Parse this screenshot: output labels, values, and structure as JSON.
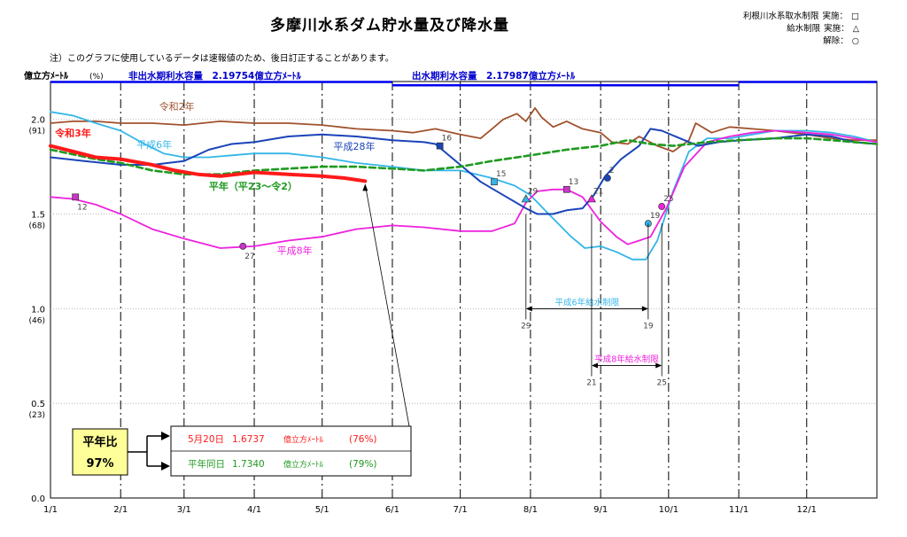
{
  "header": {
    "title": "多摩川水系ダム貯水量及び降水量",
    "note": "注）このグラフに使用しているデータは速報値のため、後日訂正することがあります。",
    "legend": [
      {
        "label": "利根川水系取水制限",
        "action": "実施：",
        "symbol": "□"
      },
      {
        "label": "給水制限",
        "action": "実施：",
        "symbol": "△"
      },
      {
        "label": "",
        "action": "解除：",
        "symbol": "○"
      }
    ]
  },
  "chart_data": {
    "type": "line",
    "ylabel": "億立方ﾒｰﾄﾙ",
    "ylabel_unit": "(%)",
    "ylim": [
      0.0,
      2.2
    ],
    "yticks": [
      {
        "value": 0.0,
        "label": "0.0",
        "pct": ""
      },
      {
        "value": 0.5,
        "label": "0.5",
        "pct": "(23)"
      },
      {
        "value": 1.0,
        "label": "1.0",
        "pct": "(46)"
      },
      {
        "value": 1.5,
        "label": "1.5",
        "pct": "(68)"
      },
      {
        "value": 2.0,
        "label": "2.0",
        "pct": "(91)"
      }
    ],
    "xlim": [
      0,
      365
    ],
    "xticks": [
      {
        "day": 0,
        "label": "1/1"
      },
      {
        "day": 31,
        "label": "2/1"
      },
      {
        "day": 59,
        "label": "3/1"
      },
      {
        "day": 90,
        "label": "4/1"
      },
      {
        "day": 120,
        "label": "5/1"
      },
      {
        "day": 151,
        "label": "6/1"
      },
      {
        "day": 181,
        "label": "7/1"
      },
      {
        "day": 212,
        "label": "8/1"
      },
      {
        "day": 243,
        "label": "9/1"
      },
      {
        "day": 273,
        "label": "10/1"
      },
      {
        "day": 304,
        "label": "11/1"
      },
      {
        "day": 334,
        "label": "12/1"
      }
    ],
    "capacity_bands": [
      {
        "label": "非出水期利水容量　2.19754億立方ﾒｰﾄﾙ",
        "value": 2.19754,
        "from_day": 0,
        "to_day": 151
      },
      {
        "label": "出水期利水容量　2.17987億立方ﾒｰﾄﾙ",
        "value": 2.17987,
        "from_day": 151,
        "to_day": 304
      }
    ],
    "series": [
      {
        "name": "令和2年",
        "color": "#a0522d",
        "width": 1.8,
        "dash": "",
        "points": [
          [
            0,
            1.98
          ],
          [
            10,
            1.99
          ],
          [
            20,
            1.99
          ],
          [
            31,
            1.98
          ],
          [
            45,
            1.98
          ],
          [
            59,
            1.97
          ],
          [
            75,
            1.99
          ],
          [
            90,
            1.98
          ],
          [
            105,
            1.98
          ],
          [
            120,
            1.97
          ],
          [
            135,
            1.95
          ],
          [
            151,
            1.94
          ],
          [
            160,
            1.93
          ],
          [
            170,
            1.95
          ],
          [
            181,
            1.92
          ],
          [
            190,
            1.9
          ],
          [
            195,
            1.95
          ],
          [
            200,
            2.0
          ],
          [
            206,
            2.03
          ],
          [
            210,
            1.99
          ],
          [
            214,
            2.06
          ],
          [
            217,
            2.01
          ],
          [
            222,
            1.96
          ],
          [
            228,
            1.99
          ],
          [
            235,
            1.95
          ],
          [
            243,
            1.93
          ],
          [
            248,
            1.88
          ],
          [
            255,
            1.87
          ],
          [
            260,
            1.91
          ],
          [
            268,
            1.86
          ],
          [
            275,
            1.83
          ],
          [
            282,
            1.89
          ],
          [
            285,
            1.98
          ],
          [
            292,
            1.93
          ],
          [
            300,
            1.96
          ],
          [
            310,
            1.95
          ],
          [
            320,
            1.94
          ],
          [
            334,
            1.92
          ],
          [
            345,
            1.9
          ],
          [
            355,
            1.89
          ],
          [
            365,
            1.89
          ]
        ]
      },
      {
        "name": "平成6年",
        "color": "#33b6e8",
        "width": 1.8,
        "dash": "",
        "points": [
          [
            0,
            2.04
          ],
          [
            10,
            2.02
          ],
          [
            20,
            1.98
          ],
          [
            31,
            1.94
          ],
          [
            40,
            1.88
          ],
          [
            50,
            1.82
          ],
          [
            59,
            1.8
          ],
          [
            70,
            1.8
          ],
          [
            80,
            1.81
          ],
          [
            90,
            1.82
          ],
          [
            105,
            1.82
          ],
          [
            120,
            1.8
          ],
          [
            135,
            1.77
          ],
          [
            151,
            1.75
          ],
          [
            165,
            1.73
          ],
          [
            181,
            1.73
          ],
          [
            195,
            1.69
          ],
          [
            205,
            1.65
          ],
          [
            212,
            1.6
          ],
          [
            220,
            1.5
          ],
          [
            230,
            1.38
          ],
          [
            236,
            1.32
          ],
          [
            243,
            1.33
          ],
          [
            250,
            1.3
          ],
          [
            257,
            1.26
          ],
          [
            263,
            1.26
          ],
          [
            268,
            1.36
          ],
          [
            275,
            1.62
          ],
          [
            282,
            1.83
          ],
          [
            290,
            1.9
          ],
          [
            300,
            1.9
          ],
          [
            310,
            1.92
          ],
          [
            320,
            1.94
          ],
          [
            334,
            1.94
          ],
          [
            345,
            1.93
          ],
          [
            355,
            1.91
          ],
          [
            365,
            1.88
          ]
        ]
      },
      {
        "name": "平成8年",
        "color": "#ee22dd",
        "width": 1.8,
        "dash": "",
        "points": [
          [
            0,
            1.59
          ],
          [
            10,
            1.58
          ],
          [
            20,
            1.55
          ],
          [
            31,
            1.5
          ],
          [
            45,
            1.42
          ],
          [
            59,
            1.37
          ],
          [
            75,
            1.32
          ],
          [
            90,
            1.33
          ],
          [
            105,
            1.36
          ],
          [
            120,
            1.38
          ],
          [
            135,
            1.42
          ],
          [
            151,
            1.44
          ],
          [
            165,
            1.43
          ],
          [
            181,
            1.41
          ],
          [
            195,
            1.41
          ],
          [
            205,
            1.45
          ],
          [
            210,
            1.56
          ],
          [
            215,
            1.62
          ],
          [
            222,
            1.63
          ],
          [
            228,
            1.63
          ],
          [
            235,
            1.59
          ],
          [
            243,
            1.46
          ],
          [
            250,
            1.38
          ],
          [
            255,
            1.34
          ],
          [
            260,
            1.36
          ],
          [
            265,
            1.38
          ],
          [
            272,
            1.53
          ],
          [
            280,
            1.75
          ],
          [
            290,
            1.88
          ],
          [
            300,
            1.91
          ],
          [
            310,
            1.93
          ],
          [
            320,
            1.94
          ],
          [
            334,
            1.93
          ],
          [
            345,
            1.92
          ],
          [
            355,
            1.9
          ],
          [
            365,
            1.88
          ]
        ]
      },
      {
        "name": "平成28年",
        "color": "#1a44b8",
        "width": 2.0,
        "dash": "",
        "points": [
          [
            0,
            1.8
          ],
          [
            15,
            1.78
          ],
          [
            31,
            1.76
          ],
          [
            45,
            1.76
          ],
          [
            59,
            1.78
          ],
          [
            70,
            1.84
          ],
          [
            80,
            1.87
          ],
          [
            90,
            1.88
          ],
          [
            105,
            1.91
          ],
          [
            120,
            1.92
          ],
          [
            135,
            1.91
          ],
          [
            151,
            1.89
          ],
          [
            165,
            1.88
          ],
          [
            170,
            1.87
          ],
          [
            180,
            1.77
          ],
          [
            190,
            1.67
          ],
          [
            200,
            1.6
          ],
          [
            210,
            1.53
          ],
          [
            215,
            1.5
          ],
          [
            222,
            1.5
          ],
          [
            228,
            1.52
          ],
          [
            235,
            1.53
          ],
          [
            240,
            1.6
          ],
          [
            245,
            1.7
          ],
          [
            252,
            1.79
          ],
          [
            260,
            1.86
          ],
          [
            265,
            1.95
          ],
          [
            270,
            1.94
          ],
          [
            278,
            1.9
          ],
          [
            286,
            1.86
          ],
          [
            295,
            1.88
          ],
          [
            305,
            1.89
          ],
          [
            320,
            1.9
          ],
          [
            334,
            1.92
          ],
          [
            345,
            1.91
          ],
          [
            355,
            1.88
          ],
          [
            365,
            1.87
          ]
        ]
      },
      {
        "name": "平年（平23～令2）",
        "color": "#1f9a1f",
        "width": 2.6,
        "dash": "7,4",
        "points": [
          [
            0,
            1.84
          ],
          [
            20,
            1.79
          ],
          [
            31,
            1.77
          ],
          [
            45,
            1.73
          ],
          [
            59,
            1.71
          ],
          [
            75,
            1.71
          ],
          [
            90,
            1.73
          ],
          [
            105,
            1.74
          ],
          [
            120,
            1.75
          ],
          [
            135,
            1.75
          ],
          [
            151,
            1.74
          ],
          [
            165,
            1.73
          ],
          [
            181,
            1.75
          ],
          [
            195,
            1.78
          ],
          [
            212,
            1.81
          ],
          [
            228,
            1.84
          ],
          [
            243,
            1.86
          ],
          [
            255,
            1.89
          ],
          [
            265,
            1.87
          ],
          [
            275,
            1.86
          ],
          [
            290,
            1.88
          ],
          [
            304,
            1.89
          ],
          [
            320,
            1.9
          ],
          [
            334,
            1.9
          ],
          [
            345,
            1.89
          ],
          [
            355,
            1.88
          ],
          [
            365,
            1.87
          ]
        ]
      },
      {
        "name": "令和3年",
        "color": "#ff1a1a",
        "width": 4.0,
        "dash": "",
        "points": [
          [
            0,
            1.86
          ],
          [
            10,
            1.83
          ],
          [
            20,
            1.8
          ],
          [
            31,
            1.79
          ],
          [
            45,
            1.76
          ],
          [
            55,
            1.73
          ],
          [
            65,
            1.71
          ],
          [
            75,
            1.7
          ],
          [
            90,
            1.72
          ],
          [
            105,
            1.71
          ],
          [
            120,
            1.7
          ],
          [
            130,
            1.69
          ],
          [
            139,
            1.6737
          ]
        ]
      }
    ],
    "labels": [
      {
        "text": "令和2年",
        "color": "#a0522d",
        "day": 48,
        "value": 2.05
      },
      {
        "text": "令和3年",
        "color": "#ff1a1a",
        "day": 2,
        "value": 1.91,
        "bold": true
      },
      {
        "text": "平成6年",
        "color": "#33b6e8",
        "day": 38,
        "value": 1.85
      },
      {
        "text": "平成28年",
        "color": "#1a44b8",
        "day": 125,
        "value": 1.84
      },
      {
        "text": "平年（平23～令2）",
        "color": "#1f9a1f",
        "day": 70,
        "value": 1.63,
        "bold": true
      },
      {
        "text": "平成8年",
        "color": "#ee22dd",
        "day": 100,
        "value": 1.29
      }
    ],
    "markers": [
      {
        "day": 11,
        "value": 1.59,
        "shape": "square",
        "color": "#cc33cc",
        "label": "12",
        "pos": "below"
      },
      {
        "day": 85,
        "value": 1.33,
        "shape": "circle",
        "color": "#cc33cc",
        "label": "27",
        "pos": "below"
      },
      {
        "day": 172,
        "value": 1.86,
        "shape": "square",
        "color": "#1a44b8",
        "label": "16",
        "pos": "above"
      },
      {
        "day": 196,
        "value": 1.67,
        "shape": "square",
        "color": "#33b6e8",
        "label": "15",
        "pos": "above"
      },
      {
        "day": 210,
        "value": 1.58,
        "shape": "triangle",
        "color": "#33b6e8",
        "label": "29",
        "pos": "above"
      },
      {
        "day": 228,
        "value": 1.63,
        "shape": "square",
        "color": "#cc33cc",
        "label": "13",
        "pos": "above"
      },
      {
        "day": 239,
        "value": 1.58,
        "shape": "triangle",
        "color": "#ee22dd",
        "label": "21",
        "pos": "above"
      },
      {
        "day": 246,
        "value": 1.69,
        "shape": "circle",
        "color": "#1a44b8",
        "label": "2",
        "pos": "above"
      },
      {
        "day": 264,
        "value": 1.45,
        "shape": "circle",
        "color": "#33b6e8",
        "label": "19",
        "pos": "above"
      },
      {
        "day": 270,
        "value": 1.54,
        "shape": "circle",
        "color": "#ee22dd",
        "label": "25",
        "pos": "above"
      }
    ],
    "restrictions": [
      {
        "label": "平成6年給水制限",
        "from_day": 210,
        "to_day": 264,
        "value": 1.0,
        "start_label": "29",
        "end_label": "19",
        "color": "#33b6e8"
      },
      {
        "label": "平成8年給水制限",
        "from_day": 239,
        "to_day": 270,
        "value": 0.7,
        "start_label": "21",
        "end_label": "25",
        "color": "#ee22dd"
      }
    ],
    "comparison": {
      "title": "平年比",
      "ratio": "97%",
      "current": {
        "date": "5月20日",
        "value": "1.6737",
        "unit": "億立方ﾒｰﾄﾙ",
        "pct": "(76%)",
        "color": "#ff1a1a"
      },
      "normal": {
        "date": "平年同日",
        "value": "1.7340",
        "unit": "億立方ﾒｰﾄﾙ",
        "pct": "(79%)",
        "color": "#1f9a1f"
      }
    }
  }
}
